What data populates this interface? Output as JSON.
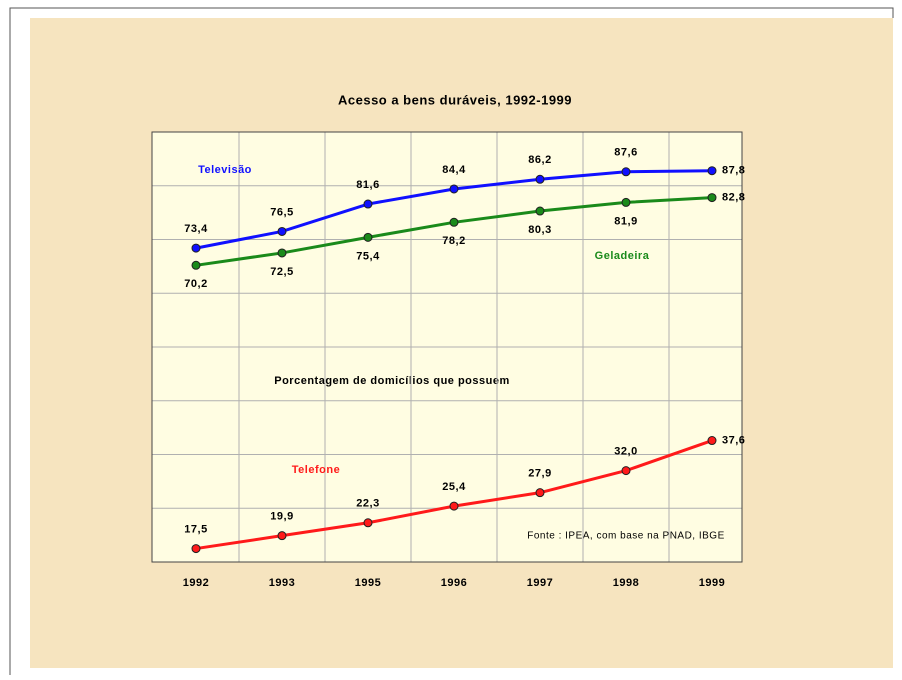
{
  "chart_data": {
    "type": "line",
    "title": "Acesso a bens duráveis, 1992-1999",
    "subtitle": "Porcentagem de domicílios que possuem",
    "source": "Fonte : IPEA, com base na PNAD, IBGE",
    "categories": [
      "1992",
      "1993",
      "1995",
      "1996",
      "1997",
      "1998",
      "1999"
    ],
    "series": [
      {
        "name": "Televisão",
        "color": "#1010ff",
        "values": [
          73.4,
          76.5,
          81.6,
          84.4,
          86.2,
          87.6,
          87.8
        ],
        "value_labels": [
          "73,4",
          "76,5",
          "81,6",
          "84,4",
          "86,2",
          "87,6",
          "87,8"
        ]
      },
      {
        "name": "Geladeira",
        "color": "#1a8a1a",
        "values": [
          70.2,
          72.5,
          75.4,
          78.2,
          80.3,
          81.9,
          82.8
        ],
        "value_labels": [
          "70,2",
          "72,5",
          "75,4",
          "78,2",
          "80,3",
          "81,9",
          "82,8"
        ]
      },
      {
        "name": "Telefone",
        "color": "#ff1a1a",
        "values": [
          17.5,
          19.9,
          22.3,
          25.4,
          27.9,
          32.0,
          37.6
        ],
        "value_labels": [
          "17,5",
          "19,9",
          "22,3",
          "25,4",
          "27,9",
          "32,0",
          "37,6"
        ]
      }
    ],
    "ylim": [
      15,
      95
    ],
    "yticks": [
      15,
      25,
      35,
      45,
      55,
      65,
      75,
      85,
      95
    ],
    "grid": true
  }
}
